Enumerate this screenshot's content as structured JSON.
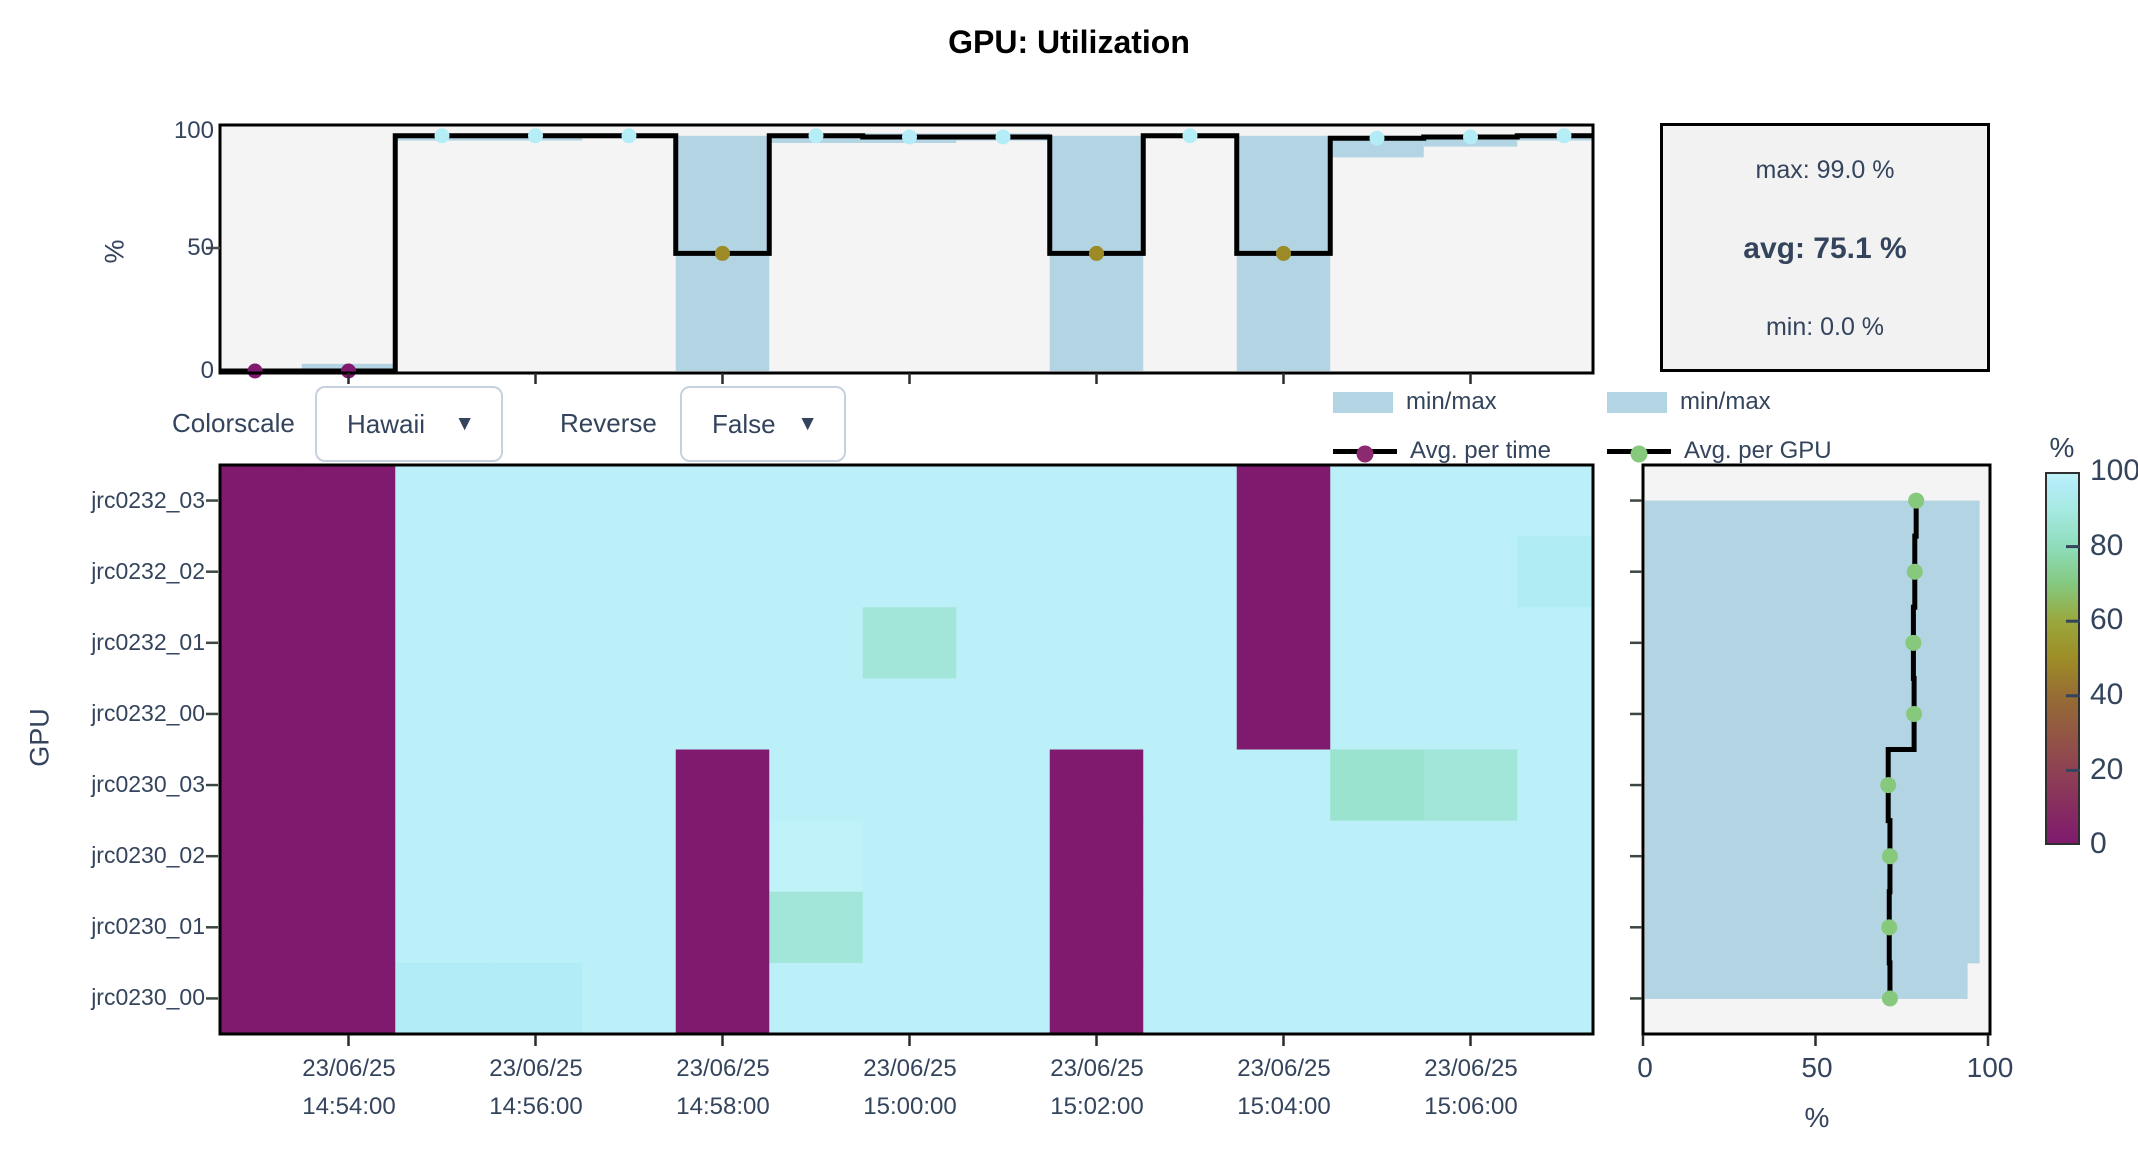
{
  "title": "GPU: Utilization",
  "controls": {
    "colorscale_label": "Colorscale",
    "colorscale_value": "Hawaii",
    "reverse_label": "Reverse",
    "reverse_value": "False",
    "dropdown_arrow": "▼"
  },
  "stats": {
    "max": "max: 99.0 %",
    "avg": "avg: 75.1 %",
    "min": "min: 0.0 %"
  },
  "legend_time": {
    "band": "min/max",
    "line": "Avg. per time"
  },
  "legend_gpu": {
    "band": "min/max",
    "line": "Avg. per GPU"
  },
  "top_chart": {
    "ylabel": "%",
    "yticks": [
      "100",
      "50",
      "0"
    ]
  },
  "heatmap": {
    "ylabel": "GPU",
    "x_ticks": [
      {
        "date": "23/06/25",
        "time": "14:54:00"
      },
      {
        "date": "23/06/25",
        "time": "14:56:00"
      },
      {
        "date": "23/06/25",
        "time": "14:58:00"
      },
      {
        "date": "23/06/25",
        "time": "15:00:00"
      },
      {
        "date": "23/06/25",
        "time": "15:02:00"
      },
      {
        "date": "23/06/25",
        "time": "15:04:00"
      },
      {
        "date": "23/06/25",
        "time": "15:06:00"
      }
    ]
  },
  "right_chart": {
    "xlabel": "%",
    "xticks": [
      "0",
      "50",
      "100"
    ]
  },
  "colorbar": {
    "title": "%",
    "ticks": [
      "100",
      "80",
      "60",
      "40",
      "20",
      "0"
    ]
  },
  "colors": {
    "text": "#33445c",
    "plot_bg": "#f4f4f4",
    "band": "#b3d4e3",
    "line": "#000000",
    "purple_low": "#7f1a6e",
    "cyan_high": "#b6eef8",
    "legend_time_dot": "#8b2a70",
    "legend_gpu_dot": "#86c97c",
    "colormap_stops": [
      [
        0,
        "#7f1a6e"
      ],
      [
        20,
        "#8f4253"
      ],
      [
        40,
        "#966d33"
      ],
      [
        50,
        "#9d8d26"
      ],
      [
        60,
        "#9aa73c"
      ],
      [
        70,
        "#84c87e"
      ],
      [
        80,
        "#8edcba"
      ],
      [
        90,
        "#a6e9e1"
      ],
      [
        97,
        "#b2ecf6"
      ],
      [
        100,
        "#bff2f9"
      ]
    ]
  },
  "chart_data": [
    {
      "type": "line",
      "name": "avg-per-time",
      "title": "GPU: Utilization",
      "ylabel": "%",
      "ylim": [
        0,
        100
      ],
      "x": [
        "14:53:00",
        "14:54:00",
        "14:55:00",
        "14:56:00",
        "14:57:00",
        "14:58:00",
        "14:59:00",
        "15:00:00",
        "15:01:00",
        "15:02:00",
        "15:03:00",
        "15:04:00",
        "15:05:00",
        "15:06:00",
        "15:07:00"
      ],
      "date": "23/06/25",
      "series": [
        {
          "name": "Avg. per time",
          "values": [
            0,
            0,
            98,
            98,
            98,
            49,
            98,
            97.5,
            97.5,
            49,
            98,
            49,
            97,
            97.5,
            98
          ]
        },
        {
          "name": "min",
          "values": [
            0,
            0,
            96,
            96,
            97,
            0,
            95,
            95,
            96,
            0,
            97,
            0,
            89,
            93.5,
            96
          ]
        },
        {
          "name": "max",
          "values": [
            0,
            3,
            99,
            99,
            99,
            98,
            99,
            99,
            99,
            98,
            99,
            98,
            98,
            98.5,
            99
          ]
        }
      ],
      "stats": {
        "max_pct": 99.0,
        "avg_pct": 75.1,
        "min_pct": 0.0
      }
    },
    {
      "type": "heatmap",
      "name": "gpu-utilization-heatmap",
      "xlabel_date": "23/06/25",
      "ylabel": "GPU",
      "zlim": [
        0,
        100
      ],
      "z_unit": "%",
      "colorscale": "Hawaii",
      "reverse": false,
      "gpus": [
        "jrc0232_03",
        "jrc0232_02",
        "jrc0232_01",
        "jrc0232_00",
        "jrc0230_03",
        "jrc0230_02",
        "jrc0230_01",
        "jrc0230_00"
      ],
      "times": [
        "14:53:00",
        "14:54:00",
        "14:55:00",
        "14:56:00",
        "14:57:00",
        "14:58:00",
        "14:59:00",
        "15:00:00",
        "15:01:00",
        "15:02:00",
        "15:03:00",
        "15:04:00",
        "15:05:00",
        "15:06:00",
        "15:07:00"
      ],
      "values": [
        [
          0,
          0,
          99,
          99,
          99,
          99,
          99,
          99,
          99,
          99,
          99,
          0,
          99,
          99,
          99
        ],
        [
          0,
          0,
          99,
          99,
          99,
          99,
          99,
          99,
          99,
          99,
          99,
          0,
          99,
          99,
          96
        ],
        [
          0,
          0,
          99,
          99,
          99,
          99,
          99,
          88,
          99,
          99,
          99,
          0,
          99,
          99,
          99
        ],
        [
          0,
          0,
          99,
          99,
          99,
          99,
          99,
          99,
          99,
          99,
          99,
          0,
          99,
          99,
          99
        ],
        [
          0,
          0,
          99,
          99,
          99,
          0,
          99,
          99,
          99,
          0,
          99,
          99,
          85,
          88,
          99
        ],
        [
          0,
          0,
          99,
          99,
          99,
          0,
          100,
          99,
          99,
          0,
          99,
          99,
          99,
          99,
          99
        ],
        [
          0,
          0,
          99,
          99,
          99,
          0,
          88,
          99,
          99,
          0,
          99,
          99,
          99,
          99,
          99
        ],
        [
          0,
          0,
          97,
          97,
          99,
          0,
          99,
          99,
          99,
          0,
          99,
          99,
          99,
          99,
          99
        ]
      ]
    },
    {
      "type": "line",
      "name": "avg-per-gpu",
      "xlabel": "%",
      "xlim": [
        0,
        100
      ],
      "gpus": [
        "jrc0232_03",
        "jrc0232_02",
        "jrc0232_01",
        "jrc0232_00",
        "jrc0230_03",
        "jrc0230_02",
        "jrc0230_01",
        "jrc0230_00"
      ],
      "series": [
        {
          "name": "Avg. per GPU",
          "values": [
            78.6,
            78.2,
            77.8,
            78.0,
            70.5,
            71.0,
            70.8,
            71.0
          ]
        },
        {
          "name": "min",
          "values": [
            0,
            0,
            0,
            0,
            0,
            0,
            0,
            0
          ]
        },
        {
          "name": "max",
          "values": [
            97,
            97,
            97,
            97,
            97,
            97,
            97,
            93.5
          ]
        }
      ]
    }
  ]
}
